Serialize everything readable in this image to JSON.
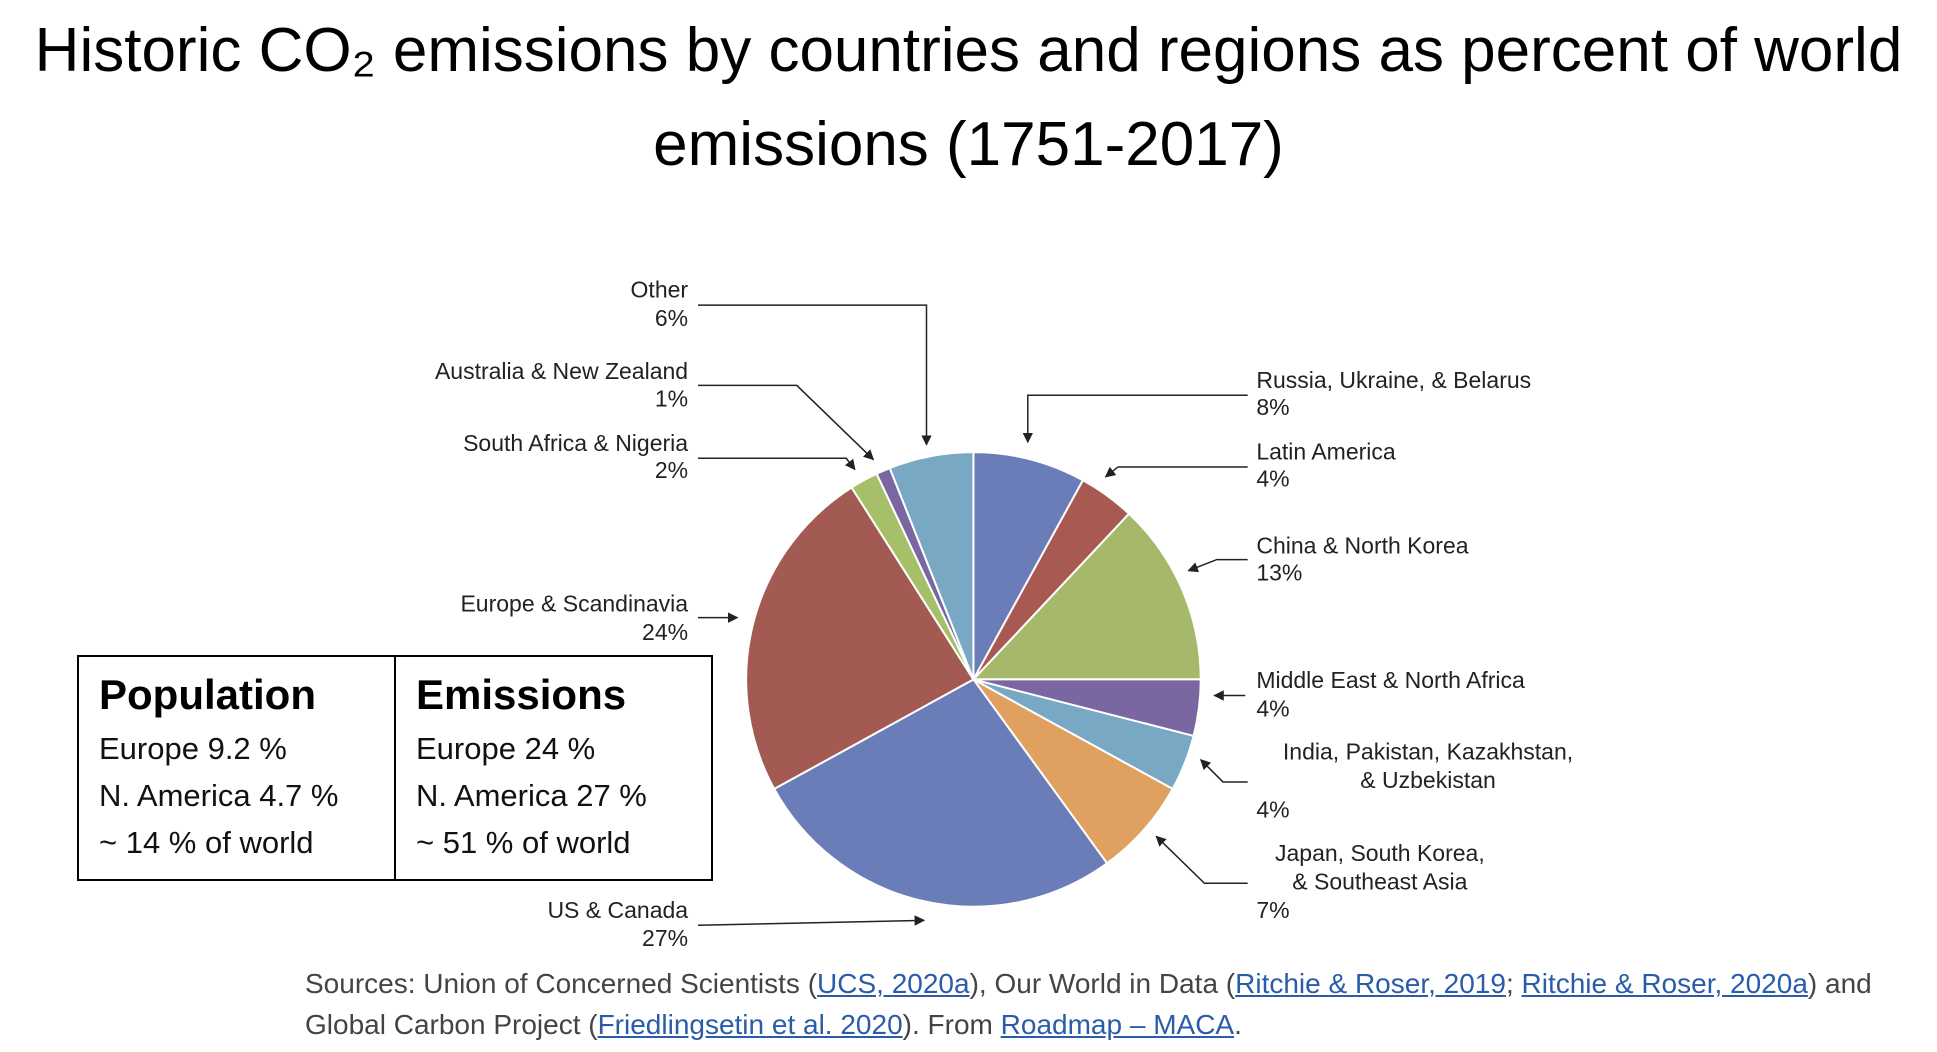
{
  "chart_data": {
    "type": "pie",
    "title": "Historic CO₂ emissions by countries and regions as percent of world emissions (1751-2017)",
    "categories": [
      "Russia, Ukraine, & Belarus",
      "Latin America",
      "China & North Korea",
      "Middle East & North Africa",
      "India, Pakistan, Kazakhstan, & Uzbekistan",
      "Japan, South Korea, & Southeast Asia",
      "US & Canada",
      "Europe & Scandinavia",
      "South Africa & Nigeria",
      "Australia & New Zealand",
      "Other"
    ],
    "values": [
      8,
      4,
      13,
      4,
      4,
      7,
      27,
      24,
      2,
      1,
      6
    ],
    "value_labels": [
      "8%",
      "4%",
      "13%",
      "4%",
      "4%",
      "7%",
      "27%",
      "24%",
      "2%",
      "1%",
      "6%"
    ],
    "colors": [
      "#6a7db8",
      "#a85a52",
      "#a6b86a",
      "#7a66a0",
      "#78a8c4",
      "#e0a060",
      "#6a7db8",
      "#a35a52",
      "#a6c06a",
      "#7a66a0",
      "#78a8c4"
    ]
  },
  "table": {
    "columns": [
      {
        "header": "Population",
        "rows": [
          "Europe 9.2 %",
          "N. America 4.7 %",
          "~ 14 % of world"
        ]
      },
      {
        "header": "Emissions",
        "rows": [
          "Europe 24 %",
          "N. America 27 %",
          "~ 51 % of world"
        ]
      }
    ]
  },
  "sources": [
    {
      "text": "Sources: Union of Concerned Scientists (",
      "link": false
    },
    {
      "text": "UCS, 2020a",
      "link": true
    },
    {
      "text": "), Our World in Data (",
      "link": false
    },
    {
      "text": "Ritchie & Roser,  2019",
      "link": true
    },
    {
      "text": "; ",
      "link": false
    },
    {
      "text": "Ritchie & Roser, 2020a",
      "link": true
    },
    {
      "text": ")  and Global Carbon Project (",
      "link": false
    },
    {
      "text": "Friedlingsetin et al. 2020",
      "link": true
    },
    {
      "text": "). From ",
      "link": false
    },
    {
      "text": "Roadmap – MACA",
      "link": true
    },
    {
      "text": ".",
      "link": false
    }
  ]
}
